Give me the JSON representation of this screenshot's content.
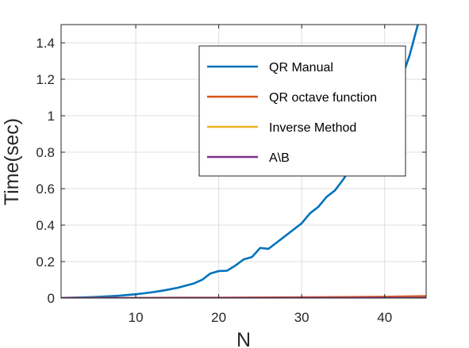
{
  "chart_data": {
    "type": "line",
    "xlabel": "N",
    "ylabel": "Time(sec)",
    "xlim": [
      1,
      45
    ],
    "ylim": [
      0,
      1.5
    ],
    "x_ticks": [
      10,
      20,
      30,
      40
    ],
    "y_ticks": [
      0,
      0.2,
      0.4,
      0.6,
      0.8,
      1,
      1.2,
      1.4
    ],
    "grid": true,
    "legend_position": "top-right",
    "series": [
      {
        "name": "QR Manual",
        "color": "#0072BD",
        "x": [
          1,
          2,
          3,
          4,
          5,
          6,
          7,
          8,
          9,
          10,
          11,
          12,
          13,
          14,
          15,
          16,
          17,
          18,
          19,
          20,
          21,
          22,
          23,
          24,
          25,
          26,
          27,
          28,
          29,
          30,
          31,
          32,
          33,
          34,
          35,
          36,
          37,
          38,
          39,
          40,
          41,
          42,
          43,
          44,
          45
        ],
        "y": [
          0.001,
          0.002,
          0.003,
          0.004,
          0.006,
          0.008,
          0.01,
          0.013,
          0.017,
          0.021,
          0.026,
          0.032,
          0.039,
          0.047,
          0.056,
          0.068,
          0.08,
          0.1,
          0.135,
          0.148,
          0.15,
          0.178,
          0.212,
          0.225,
          0.275,
          0.27,
          0.305,
          0.34,
          0.375,
          0.41,
          0.465,
          0.5,
          0.555,
          0.59,
          0.65,
          0.72,
          0.78,
          0.85,
          0.93,
          1.01,
          1.1,
          1.2,
          1.33,
          1.5,
          1.7
        ]
      },
      {
        "name": "QR octave function",
        "color": "#D95319",
        "x": [
          1,
          5,
          10,
          15,
          20,
          25,
          30,
          35,
          40,
          43,
          45
        ],
        "y": [
          0,
          0.001,
          0.001,
          0.002,
          0.002,
          0.003,
          0.004,
          0.005,
          0.007,
          0.009,
          0.01
        ]
      },
      {
        "name": "Inverse Method",
        "color": "#EDB120",
        "x": [
          1,
          10,
          20,
          30,
          40,
          45
        ],
        "y": [
          0,
          0.0005,
          0.001,
          0.001,
          0.0015,
          0.002
        ]
      },
      {
        "name": "A\\B",
        "color": "#7E2F8E",
        "x": [
          1,
          10,
          20,
          30,
          40,
          45
        ],
        "y": [
          0,
          0,
          0.0003,
          0.0005,
          0.0008,
          0.001
        ]
      }
    ]
  }
}
